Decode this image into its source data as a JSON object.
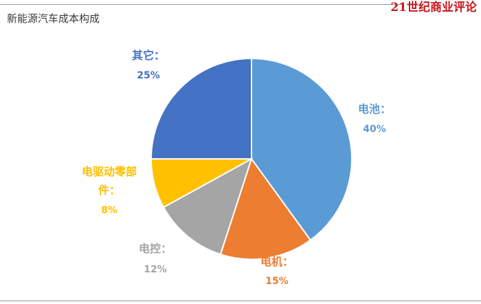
{
  "header": {
    "title": "新能源汽车成本构成",
    "brand": "21世纪商业评论"
  },
  "chart_data": {
    "type": "pie",
    "title": "新能源汽车成本构成",
    "start_angle_deg": 0,
    "direction": "clockwise",
    "slices": [
      {
        "label": "电池：",
        "value": 40,
        "display": "40%",
        "color": "#5b9bd5"
      },
      {
        "label": "电机：",
        "value": 15,
        "display": "15%",
        "color": "#ed7d31"
      },
      {
        "label": "电控：",
        "value": 12,
        "display": "12%",
        "color": "#a5a5a5"
      },
      {
        "label": "电驱动零部件：",
        "value": 8,
        "display": "8%",
        "color": "#ffc000"
      },
      {
        "label": "其它：",
        "value": 25,
        "display": "25%",
        "color": "#4472c4"
      }
    ]
  }
}
